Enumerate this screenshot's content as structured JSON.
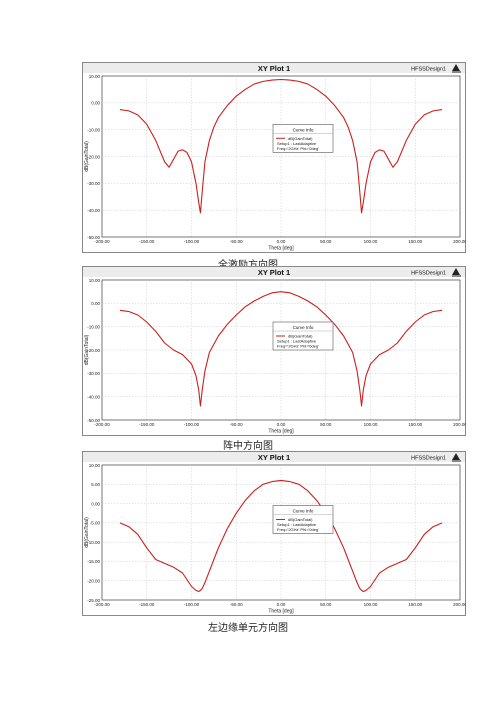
{
  "captions": [
    "全激励方向图",
    "阵中方向图",
    "左边缘单元方向图"
  ],
  "colors": {
    "curve": "#cc1f1f",
    "header_bg": "#ececec",
    "grid": "#c9c9c9"
  },
  "chart_data": [
    {
      "type": "line",
      "title": "XY Plot 1",
      "project": "HFSSDesign1",
      "logo_icon": "ansoft-logo-icon",
      "xlabel": "Theta [deg]",
      "ylabel": "dB(GainTotal)",
      "xlim": [
        -200,
        200
      ],
      "ylim": [
        -50,
        10
      ],
      "xticks": [
        "-200.00",
        "-150.00",
        "-100.00",
        "-50.00",
        "0.00",
        "50.00",
        "100.00",
        "150.00",
        "200.00"
      ],
      "yticks": [
        "10.00",
        "0.00",
        "-10.00",
        "-20.00",
        "-30.00",
        "-40.00",
        "-50.00"
      ],
      "legend": {
        "title": "Curve Info",
        "lines": [
          "dB(GainTotal)",
          "Setup1 : LastAdaptive",
          "Freq='2GHz' Phi='0deg'"
        ],
        "position": "center"
      },
      "grid": true,
      "series": [
        {
          "x": [
            -180,
            -170,
            -160,
            -150,
            -140,
            -130,
            -125,
            -120,
            -115,
            -110,
            -105,
            -100,
            -95,
            -92,
            -90,
            -88,
            -85,
            -80,
            -75,
            -70,
            -60,
            -50,
            -40,
            -30,
            -20,
            -10,
            0,
            10,
            20,
            30,
            40,
            50,
            60,
            70,
            75,
            80,
            85,
            88,
            90,
            92,
            95,
            100,
            105,
            110,
            115,
            120,
            125,
            130,
            140,
            150,
            160,
            170,
            180
          ],
          "y": [
            -2.5,
            -3,
            -4.5,
            -8,
            -14,
            -22,
            -24,
            -21,
            -18,
            -17.5,
            -18.5,
            -22,
            -30,
            -37,
            -41,
            -33,
            -22,
            -14,
            -9,
            -5.5,
            -1,
            2.5,
            5,
            7,
            8,
            8.5,
            8.7,
            8.5,
            8,
            7,
            5,
            2.5,
            -1,
            -5.5,
            -9,
            -14,
            -22,
            -33,
            -41,
            -37,
            -30,
            -22,
            -18.5,
            -17.5,
            -18,
            -21,
            -24,
            -22,
            -14,
            -8,
            -4.5,
            -3,
            -2.5
          ]
        }
      ]
    },
    {
      "type": "line",
      "title": "XY Plot 1",
      "project": "HFSSDesign1",
      "logo_icon": "ansoft-logo-icon",
      "xlabel": "Theta [deg]",
      "ylabel": "dB(GainTotal)",
      "xlim": [
        -200,
        200
      ],
      "ylim": [
        -50,
        10
      ],
      "xticks": [
        "-200.00",
        "-150.00",
        "-100.00",
        "-50.00",
        "0.00",
        "50.00",
        "100.00",
        "150.00",
        "200.00"
      ],
      "yticks": [
        "10.00",
        "0.00",
        "-10.00",
        "-20.00",
        "-30.00",
        "-40.00",
        "-50.00"
      ],
      "legend": {
        "title": "Curve Info",
        "lines": [
          "dB(GainTotal)",
          "Setup1 : LastAdaptive",
          "Freq='2GHz' Phi='0deg'"
        ],
        "position": "center"
      },
      "grid": true,
      "series": [
        {
          "x": [
            -180,
            -170,
            -160,
            -150,
            -140,
            -130,
            -120,
            -110,
            -100,
            -95,
            -92,
            -90,
            -88,
            -85,
            -80,
            -70,
            -60,
            -50,
            -40,
            -30,
            -20,
            -10,
            0,
            10,
            20,
            30,
            40,
            50,
            60,
            70,
            80,
            85,
            88,
            90,
            92,
            95,
            100,
            110,
            120,
            130,
            140,
            150,
            160,
            170,
            180
          ],
          "y": [
            -3,
            -3.5,
            -5,
            -8,
            -12,
            -17,
            -20,
            -22,
            -26,
            -31,
            -37,
            -44,
            -37,
            -29,
            -21,
            -14,
            -9,
            -5,
            -1.5,
            1,
            3,
            4.5,
            5,
            4.5,
            3,
            1,
            -1.5,
            -5,
            -9,
            -14,
            -21,
            -29,
            -37,
            -44,
            -37,
            -31,
            -26,
            -22,
            -20,
            -17,
            -12,
            -8,
            -5,
            -3.5,
            -3
          ]
        }
      ]
    },
    {
      "type": "line",
      "title": "XY Plot 1",
      "project": "HFSSDesign1",
      "logo_icon": "ansoft-logo-icon",
      "xlabel": "Theta [deg]",
      "ylabel": "dB(GainTotal)",
      "xlim": [
        -200,
        200
      ],
      "ylim": [
        -25,
        10
      ],
      "xticks": [
        "-200.00",
        "-150.00",
        "-100.00",
        "-50.00",
        "0.00",
        "50.00",
        "100.00",
        "150.00",
        "200.00"
      ],
      "yticks": [
        "10.00",
        "5.00",
        "0.00",
        "-5.00",
        "-10.00",
        "-15.00",
        "-20.00",
        "-25.00"
      ],
      "legend": {
        "title": "Curve Info",
        "lines": [
          "dB(GainTotal)",
          "Setup1 : LastAdaptive",
          "Freq='2GHz' Phi='0deg'"
        ],
        "position": "center"
      },
      "grid": true,
      "series": [
        {
          "x": [
            -180,
            -170,
            -160,
            -150,
            -140,
            -130,
            -120,
            -110,
            -100,
            -95,
            -92,
            -90,
            -88,
            -85,
            -80,
            -75,
            -70,
            -60,
            -50,
            -40,
            -30,
            -20,
            -10,
            0,
            10,
            20,
            30,
            40,
            50,
            60,
            70,
            75,
            80,
            85,
            88,
            90,
            92,
            95,
            100,
            110,
            120,
            130,
            140,
            150,
            160,
            170,
            180
          ],
          "y": [
            -5,
            -6,
            -8,
            -11.5,
            -14.5,
            -15.5,
            -16.5,
            -18,
            -21.5,
            -22.5,
            -22.8,
            -22.5,
            -22,
            -20.5,
            -17.5,
            -14.5,
            -11.5,
            -6.5,
            -2.5,
            0.8,
            3.3,
            5,
            5.7,
            6,
            5.7,
            5,
            3.3,
            0.8,
            -2.5,
            -6.5,
            -11.5,
            -14.5,
            -17.5,
            -20.5,
            -22,
            -22.5,
            -22.8,
            -22.5,
            -21.5,
            -18,
            -16.5,
            -15.5,
            -14.5,
            -11.5,
            -8,
            -6,
            -5
          ]
        }
      ]
    }
  ]
}
